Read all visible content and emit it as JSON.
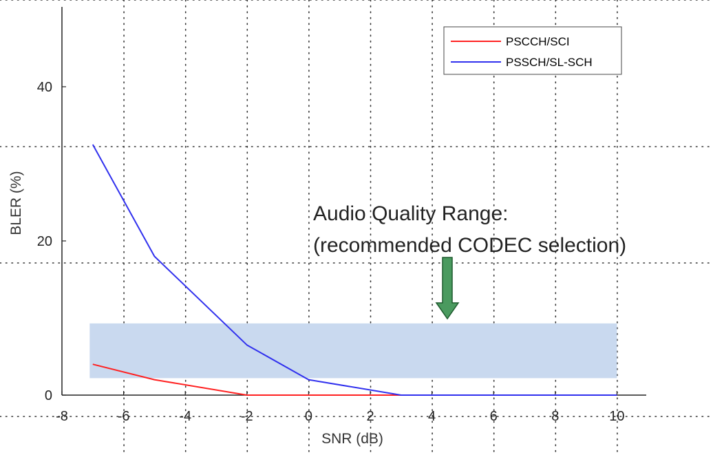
{
  "chart_data": {
    "type": "line",
    "title": "",
    "xlabel": "SNR (dB)",
    "ylabel": "BLER (%)",
    "xlim": [
      -8,
      11
    ],
    "ylim": [
      0,
      50
    ],
    "x_ticks": [
      -8,
      -6,
      -4,
      -2,
      0,
      2,
      4,
      6,
      8,
      10
    ],
    "y_ticks": [
      0,
      20,
      40
    ],
    "grid": "dotted",
    "legend_position": "top-right",
    "series": [
      {
        "name": "PSCCH/SCI",
        "color": "#ff2020",
        "x": [
          -7,
          -5,
          -2,
          0,
          3,
          10
        ],
        "y": [
          4,
          2,
          0,
          0,
          0,
          0
        ]
      },
      {
        "name": "PSSCH/SL-SCH",
        "color": "#3030ee",
        "x": [
          -7,
          -5,
          -2,
          0,
          3,
          10
        ],
        "y": [
          32.5,
          18,
          6.5,
          2,
          0,
          0
        ]
      }
    ],
    "band": {
      "x": [
        -7.1,
        10
      ],
      "y": [
        2.2,
        9.3
      ],
      "color": "#c9d9ef"
    },
    "annotation": {
      "lines": [
        "Audio Quality Range:",
        "(recommended CODEC selection)"
      ],
      "arrow_color": "#4a9a5f",
      "arrow_x": 4.5
    }
  }
}
